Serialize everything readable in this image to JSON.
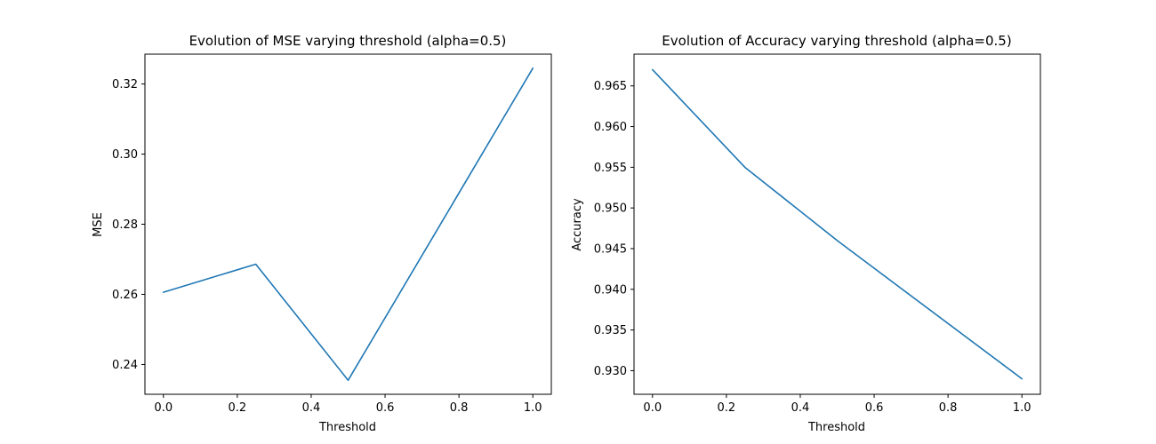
{
  "chart_data": [
    {
      "type": "line",
      "title": "Evolution of MSE varying threshold (alpha=0.5)",
      "xlabel": "Threshold",
      "ylabel": "MSE",
      "xlim": [
        -0.05,
        1.05
      ],
      "ylim": [
        0.2315,
        0.3285
      ],
      "xticks": [
        0.0,
        0.2,
        0.4,
        0.6,
        0.8,
        1.0
      ],
      "xtick_labels": [
        "0.0",
        "0.2",
        "0.4",
        "0.6",
        "0.8",
        "1.0"
      ],
      "yticks": [
        0.24,
        0.26,
        0.28,
        0.3,
        0.32
      ],
      "ytick_labels": [
        "0.24",
        "0.26",
        "0.28",
        "0.30",
        "0.32"
      ],
      "grid": false,
      "series": [
        {
          "color": "#1f77b4",
          "x": [
            0.0,
            0.25,
            0.5,
            1.0
          ],
          "y": [
            0.2606,
            0.2686,
            0.2355,
            0.3245
          ]
        }
      ]
    },
    {
      "type": "line",
      "title": "Evolution of Accuracy varying threshold (alpha=0.5)",
      "xlabel": "Threshold",
      "ylabel": "Accuracy",
      "xlim": [
        -0.05,
        1.05
      ],
      "ylim": [
        0.9271,
        0.9689
      ],
      "xticks": [
        0.0,
        0.2,
        0.4,
        0.6,
        0.8,
        1.0
      ],
      "xtick_labels": [
        "0.0",
        "0.2",
        "0.4",
        "0.6",
        "0.8",
        "1.0"
      ],
      "yticks": [
        0.93,
        0.935,
        0.94,
        0.945,
        0.95,
        0.955,
        0.96,
        0.965
      ],
      "ytick_labels": [
        "0.930",
        "0.935",
        "0.940",
        "0.945",
        "0.950",
        "0.955",
        "0.960",
        "0.965"
      ],
      "grid": false,
      "series": [
        {
          "color": "#1f77b4",
          "x": [
            0.0,
            0.25,
            0.5,
            1.0
          ],
          "y": [
            0.967,
            0.955,
            0.946,
            0.929
          ]
        }
      ]
    }
  ]
}
